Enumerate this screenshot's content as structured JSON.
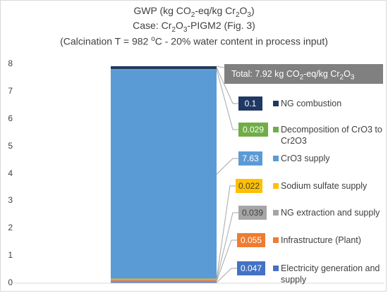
{
  "chart_data": {
    "type": "bar",
    "stacked": true,
    "title_lines": [
      {
        "parts": [
          {
            "t": "GWP (kg CO"
          },
          {
            "sub": "2"
          },
          {
            "t": "-eq/kg Cr"
          },
          {
            "sub": "2"
          },
          {
            "t": "O"
          },
          {
            "sub": "3"
          },
          {
            "t": ")"
          }
        ]
      },
      {
        "parts": [
          {
            "t": "Case: Cr"
          },
          {
            "sub": "2"
          },
          {
            "t": "O"
          },
          {
            "sub": "3"
          },
          {
            "t": "-PIGM2 (Fig. 3)"
          }
        ]
      },
      {
        "parts": [
          {
            "t": "(Calcination T = 982 "
          },
          {
            "sup": "o"
          },
          {
            "t": "C - 20% water content in process input)"
          }
        ]
      }
    ],
    "ylim": [
      0,
      8
    ],
    "yticks": [
      "0",
      "1",
      "2",
      "3",
      "4",
      "5",
      "6",
      "7",
      "8"
    ],
    "total": {
      "parts": [
        {
          "t": "Total: 7.92 kg CO"
        },
        {
          "sub": "2"
        },
        {
          "t": "-eq/kg Cr"
        },
        {
          "sub": "2"
        },
        {
          "t": "O"
        },
        {
          "sub": "3"
        }
      ]
    },
    "total_value": 7.92,
    "series": [
      {
        "name": "Electricity generation and supply",
        "value": 0.047,
        "label": "0.047",
        "color": "#4472c4",
        "text_color": "#ffffff"
      },
      {
        "name": "Infrastructure (Plant)",
        "value": 0.055,
        "label": "0.055",
        "color": "#ed7d31",
        "text_color": "#ffffff"
      },
      {
        "name": "NG extraction and supply",
        "value": 0.039,
        "label": "0.039",
        "color": "#a5a5a5",
        "text_color": "#404040"
      },
      {
        "name": "Sodium sulfate supply",
        "value": 0.022,
        "label": "0.022",
        "color": "#ffc000",
        "text_color": "#404040"
      },
      {
        "name": "CrO3 supply",
        "value": 7.63,
        "label": "7.63",
        "color": "#5b9bd5",
        "text_color": "#ffffff"
      },
      {
        "name": "Decomposition of CrO3 to Cr2O3",
        "value": 0.029,
        "label": "0.029",
        "color": "#70ad47",
        "text_color": "#ffffff"
      },
      {
        "name": "NG combustion",
        "value": 0.1,
        "label": "0.1",
        "color": "#1f3864",
        "text_color": "#ffffff"
      }
    ]
  }
}
